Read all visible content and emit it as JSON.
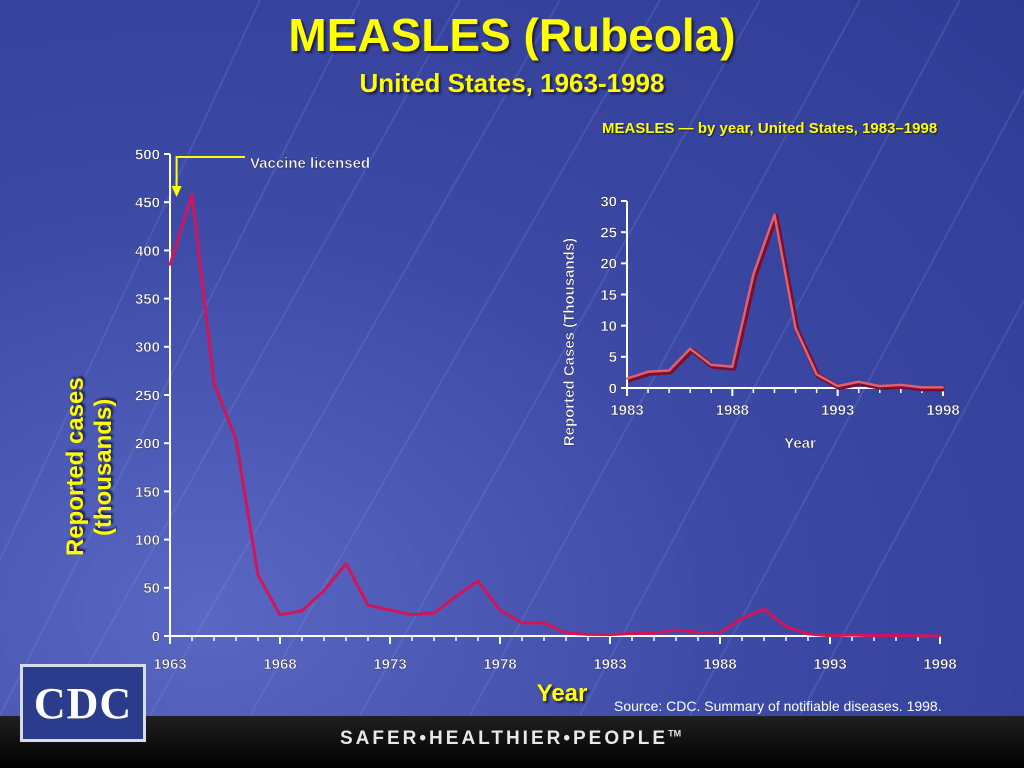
{
  "title": "MEASLES (Rubeola)",
  "subtitle": "United States, 1963-1998",
  "source": "Source:  CDC. Summary of notifiable diseases. 1998.",
  "tagline": "SAFER•HEALTHIER•PEOPLE",
  "tagline_mark": "TM",
  "logo_text": "CDC",
  "colors": {
    "title": "#ffff00",
    "main_line": "#d4145a",
    "inset_line": "#e06070",
    "background": "#3d4aa6"
  },
  "chart_data": [
    {
      "type": "line",
      "title": "",
      "xlabel": "Year",
      "ylabel": "Reported cases (thousands)",
      "xlim": [
        1963,
        1998
      ],
      "ylim": [
        0,
        500
      ],
      "x_ticks": [
        1963,
        1968,
        1973,
        1978,
        1983,
        1988,
        1993,
        1998
      ],
      "y_ticks": [
        0,
        50,
        100,
        150,
        200,
        250,
        300,
        350,
        400,
        450,
        500
      ],
      "grid": false,
      "annotation": {
        "text": "Vaccine licensed",
        "x": 1963.3,
        "y": 500
      },
      "series": [
        {
          "x": [
            1963,
            1964,
            1965,
            1966,
            1967,
            1968,
            1969,
            1970,
            1971,
            1972,
            1973,
            1974,
            1975,
            1976,
            1977,
            1978,
            1979,
            1980,
            1981,
            1982,
            1983,
            1984,
            1985,
            1986,
            1987,
            1988,
            1989,
            1990,
            1991,
            1992,
            1993,
            1994,
            1995,
            1996,
            1997,
            1998
          ],
          "y": [
            385,
            458,
            262,
            204,
            63,
            22,
            26,
            47,
            75,
            32,
            27,
            22,
            24,
            41,
            57,
            27,
            13.6,
            13.5,
            3.1,
            1.7,
            1.5,
            2.6,
            2.8,
            6.3,
            3.7,
            3.4,
            18.2,
            27.8,
            9.6,
            2.2,
            0.3,
            1.0,
            0.3,
            0.5,
            0.1,
            0.1
          ]
        }
      ]
    },
    {
      "type": "line",
      "title": "MEASLES — by year, United States, 1983–1998",
      "xlabel": "Year",
      "ylabel": "Reported Cases (Thousands)",
      "xlim": [
        1983,
        1998
      ],
      "ylim": [
        0,
        30
      ],
      "x_ticks": [
        1983,
        1988,
        1993,
        1998
      ],
      "y_ticks": [
        0,
        5,
        10,
        15,
        20,
        25,
        30
      ],
      "grid": false,
      "series": [
        {
          "x": [
            1983,
            1984,
            1985,
            1986,
            1987,
            1988,
            1989,
            1990,
            1991,
            1992,
            1993,
            1994,
            1995,
            1996,
            1997,
            1998
          ],
          "y": [
            1.5,
            2.6,
            2.8,
            6.3,
            3.7,
            3.4,
            18.2,
            27.8,
            9.6,
            2.2,
            0.3,
            1.0,
            0.3,
            0.5,
            0.1,
            0.1
          ]
        }
      ]
    }
  ]
}
